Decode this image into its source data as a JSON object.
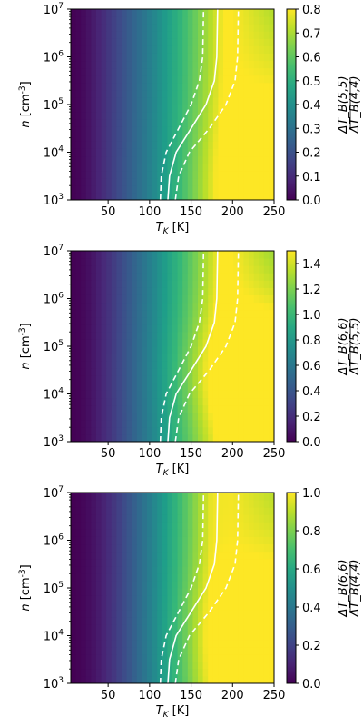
{
  "chart_data": [
    {
      "type": "heatmap",
      "xlabel": "T_K [K]",
      "ylabel": "n [cm^-3]",
      "cbar_label": "ΔT_B(5,5) / ΔT_B(4,4)",
      "x_ticks": [
        "50",
        "100",
        "150",
        "200",
        "250"
      ],
      "y_ticks": [
        "10^3",
        "10^4",
        "10^5",
        "10^6",
        "10^7"
      ],
      "cbar_ticks": [
        "0.0",
        "0.1",
        "0.2",
        "0.3",
        "0.4",
        "0.5",
        "0.6",
        "0.7",
        "0.8"
      ],
      "xlim": [
        5,
        250
      ],
      "ylim_log10": [
        3,
        7
      ],
      "clim": [
        0,
        0.8
      ],
      "colormap": "viridis",
      "contours": [
        {
          "style": "solid",
          "color": "#ffffff",
          "points": [
            [
              122,
              3
            ],
            [
              124,
              3.5
            ],
            [
              132,
              4
            ],
            [
              150,
              4.5
            ],
            [
              168,
              5
            ],
            [
              178,
              5.5
            ],
            [
              181,
              6
            ],
            [
              182,
              7
            ]
          ]
        },
        {
          "style": "dashed",
          "color": "#ffffff",
          "points": [
            [
              113,
              3
            ],
            [
              114,
              3.5
            ],
            [
              120,
              4
            ],
            [
              135,
              4.5
            ],
            [
              150,
              5
            ],
            [
              160,
              5.5
            ],
            [
              164,
              6
            ],
            [
              165,
              7
            ]
          ]
        },
        {
          "style": "dashed",
          "color": "#ffffff",
          "points": [
            [
              131,
              3
            ],
            [
              135,
              3.5
            ],
            [
              148,
              4
            ],
            [
              172,
              4.5
            ],
            [
              192,
              5
            ],
            [
              203,
              5.5
            ],
            [
              206,
              6
            ],
            [
              207,
              7
            ]
          ]
        }
      ],
      "field": {
        "tcol": 20,
        "tscale": 190,
        "peak_t": 240,
        "peak_logn": 3.3,
        "peak_width": 1.6,
        "bump": 0.1,
        "tail": 0.12
      }
    },
    {
      "type": "heatmap",
      "xlabel": "T_K [K]",
      "ylabel": "n [cm^-3]",
      "cbar_label": "ΔT_B(6,6) / ΔT_B(5,5)",
      "x_ticks": [
        "50",
        "100",
        "150",
        "200",
        "250"
      ],
      "y_ticks": [
        "10^3",
        "10^4",
        "10^5",
        "10^6",
        "10^7"
      ],
      "cbar_ticks": [
        "0.0",
        "0.2",
        "0.4",
        "0.6",
        "0.8",
        "1.0",
        "1.2",
        "1.4"
      ],
      "xlim": [
        5,
        250
      ],
      "ylim_log10": [
        3,
        7
      ],
      "clim": [
        0,
        1.5
      ],
      "colormap": "viridis",
      "contours": [
        {
          "style": "solid",
          "color": "#ffffff",
          "points": [
            [
              122,
              3
            ],
            [
              124,
              3.5
            ],
            [
              132,
              4
            ],
            [
              150,
              4.5
            ],
            [
              168,
              5
            ],
            [
              178,
              5.5
            ],
            [
              181,
              6
            ],
            [
              182,
              7
            ]
          ]
        },
        {
          "style": "dashed",
          "color": "#ffffff",
          "points": [
            [
              113,
              3
            ],
            [
              114,
              3.5
            ],
            [
              120,
              4
            ],
            [
              135,
              4.5
            ],
            [
              150,
              5
            ],
            [
              160,
              5.5
            ],
            [
              164,
              6
            ],
            [
              165,
              7
            ]
          ]
        },
        {
          "style": "dashed",
          "color": "#ffffff",
          "points": [
            [
              131,
              3
            ],
            [
              135,
              3.5
            ],
            [
              148,
              4
            ],
            [
              172,
              4.5
            ],
            [
              192,
              5
            ],
            [
              203,
              5.5
            ],
            [
              206,
              6
            ],
            [
              207,
              7
            ]
          ]
        }
      ],
      "field": {
        "tcol": 30,
        "tscale": 185,
        "peak_t": 240,
        "peak_logn": 4.4,
        "peak_width": 1.2,
        "bump": 0.2,
        "tail": 0.15
      }
    },
    {
      "type": "heatmap",
      "xlabel": "T_K [K]",
      "ylabel": "n [cm^-3]",
      "cbar_label": "ΔT_B(6,6) / ΔT_B(4,4)",
      "x_ticks": [
        "50",
        "100",
        "150",
        "200",
        "250"
      ],
      "y_ticks": [
        "10^3",
        "10^4",
        "10^5",
        "10^6",
        "10^7"
      ],
      "cbar_ticks": [
        "0.0",
        "0.2",
        "0.4",
        "0.6",
        "0.8",
        "1.0"
      ],
      "xlim": [
        5,
        250
      ],
      "ylim_log10": [
        3,
        7
      ],
      "clim": [
        0,
        1.0
      ],
      "colormap": "viridis",
      "contours": [
        {
          "style": "solid",
          "color": "#ffffff",
          "points": [
            [
              122,
              3
            ],
            [
              124,
              3.5
            ],
            [
              132,
              4
            ],
            [
              150,
              4.5
            ],
            [
              168,
              5
            ],
            [
              178,
              5.5
            ],
            [
              181,
              6
            ],
            [
              182,
              7
            ]
          ]
        },
        {
          "style": "dashed",
          "color": "#ffffff",
          "points": [
            [
              113,
              3
            ],
            [
              114,
              3.5
            ],
            [
              120,
              4
            ],
            [
              135,
              4.5
            ],
            [
              150,
              5
            ],
            [
              160,
              5.5
            ],
            [
              164,
              6
            ],
            [
              165,
              7
            ]
          ]
        },
        {
          "style": "dashed",
          "color": "#ffffff",
          "points": [
            [
              131,
              3
            ],
            [
              135,
              3.5
            ],
            [
              148,
              4
            ],
            [
              172,
              4.5
            ],
            [
              192,
              5
            ],
            [
              203,
              5.5
            ],
            [
              206,
              6
            ],
            [
              207,
              7
            ]
          ]
        }
      ],
      "field": {
        "tcol": 45,
        "tscale": 175,
        "peak_t": 245,
        "peak_logn": 4.0,
        "peak_width": 1.3,
        "bump": 0.15,
        "tail": 0.1
      }
    }
  ]
}
